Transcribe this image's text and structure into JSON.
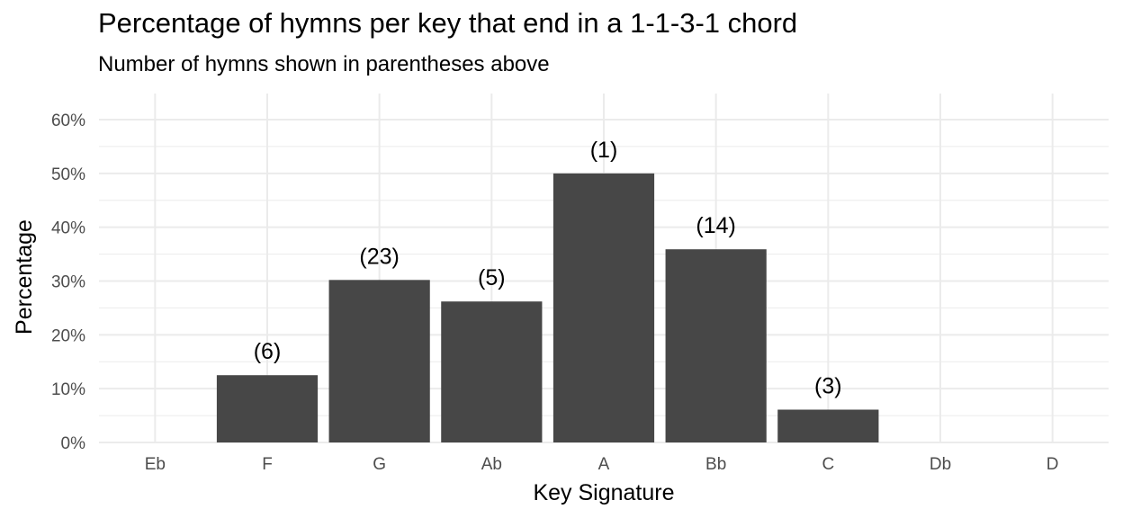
{
  "chart_data": {
    "type": "bar",
    "title": "Percentage of hymns per key that end in a 1-1-3-1 chord",
    "subtitle": "Number of hymns shown in parentheses above",
    "xlabel": "Key Signature",
    "ylabel": "Percentage",
    "categories": [
      "Eb",
      "F",
      "G",
      "Ab",
      "A",
      "Bb",
      "C",
      "Db",
      "D"
    ],
    "values": [
      0,
      12.5,
      30.2,
      26.2,
      50,
      35.9,
      6.1,
      0,
      0
    ],
    "bar_labels": [
      "",
      "(6)",
      "(23)",
      "(5)",
      "(1)",
      "(14)",
      "(3)",
      "",
      ""
    ],
    "ylim": [
      0,
      60
    ],
    "yticks": [
      0,
      10,
      20,
      30,
      40,
      50,
      60
    ],
    "ytick_labels": [
      "0%",
      "10%",
      "20%",
      "30%",
      "40%",
      "50%",
      "60%"
    ],
    "grid": true,
    "bar_color": "#474747",
    "grid_color": "#ebebeb"
  }
}
